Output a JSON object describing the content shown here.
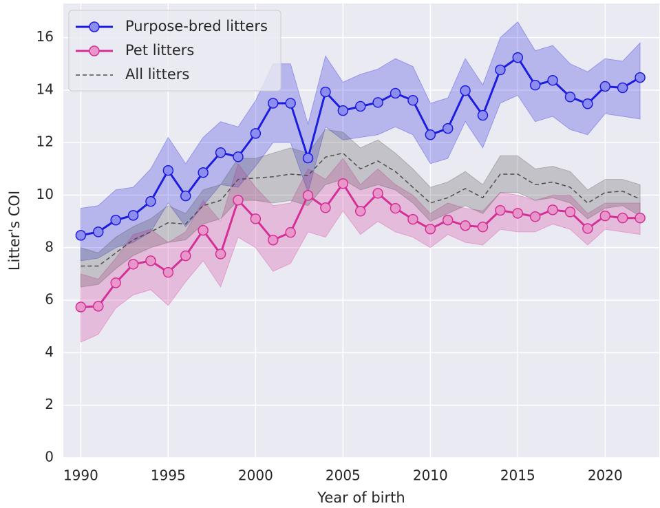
{
  "chart_data": {
    "type": "line",
    "xlabel": "Year of birth",
    "ylabel": "Litter's COI",
    "x": [
      1990,
      1991,
      1992,
      1993,
      1994,
      1995,
      1996,
      1997,
      1998,
      1999,
      2000,
      2001,
      2002,
      2003,
      2004,
      2005,
      2006,
      2007,
      2008,
      2009,
      2010,
      2011,
      2012,
      2013,
      2014,
      2015,
      2016,
      2017,
      2018,
      2019,
      2020,
      2021,
      2022
    ],
    "xlim": [
      1989,
      2023.1
    ],
    "xticks": [
      1990,
      1995,
      2000,
      2005,
      2010,
      2015,
      2020
    ],
    "ylim": [
      0,
      17.3
    ],
    "yticks": [
      0,
      2,
      4,
      6,
      8,
      10,
      12,
      14,
      16
    ],
    "grid": true,
    "legend": "upper left",
    "series": [
      {
        "name": "Purpose-bred litters",
        "color": "#1c1ce0",
        "linestyle": "-",
        "marker": "o",
        "values": [
          8.47,
          8.6,
          9.05,
          9.23,
          9.76,
          10.94,
          9.97,
          10.86,
          11.62,
          11.46,
          12.35,
          13.5,
          13.5,
          11.41,
          13.93,
          13.22,
          13.38,
          13.53,
          13.88,
          13.61,
          12.3,
          12.54,
          13.98,
          13.04,
          14.77,
          15.24,
          14.19,
          14.37,
          13.74,
          13.48,
          14.14,
          14.09,
          14.48
        ],
        "upper": [
          9.5,
          9.6,
          10.2,
          10.3,
          11.0,
          12.2,
          11.2,
          12.2,
          12.8,
          12.6,
          13.6,
          15.0,
          15.0,
          12.7,
          15.3,
          14.3,
          14.6,
          14.8,
          15.2,
          14.9,
          13.5,
          13.7,
          15.2,
          14.2,
          16.0,
          16.6,
          15.5,
          15.7,
          15.0,
          14.7,
          15.2,
          15.1,
          15.8
        ],
        "lower": [
          7.5,
          7.6,
          8.0,
          8.2,
          8.6,
          9.7,
          8.8,
          9.6,
          10.4,
          10.3,
          11.1,
          12.0,
          12.0,
          10.1,
          12.6,
          12.1,
          12.2,
          12.3,
          12.6,
          12.3,
          11.2,
          11.4,
          12.8,
          11.8,
          13.5,
          13.8,
          12.8,
          13.0,
          12.5,
          12.3,
          13.1,
          13.0,
          12.9
        ]
      },
      {
        "name": "Pet litters",
        "color": "#d42f96",
        "linestyle": "-",
        "marker": "o",
        "values": [
          5.74,
          5.77,
          6.66,
          7.37,
          7.5,
          7.06,
          7.69,
          8.66,
          7.76,
          9.81,
          9.1,
          8.29,
          8.58,
          9.99,
          9.52,
          10.44,
          9.39,
          10.07,
          9.5,
          9.08,
          8.71,
          9.05,
          8.84,
          8.79,
          9.42,
          9.31,
          9.18,
          9.44,
          9.36,
          8.73,
          9.21,
          9.13,
          9.13
        ],
        "upper": [
          7.0,
          6.8,
          7.6,
          8.5,
          8.7,
          8.2,
          8.6,
          9.8,
          9.0,
          11.2,
          10.3,
          9.6,
          9.7,
          11.0,
          10.6,
          11.4,
          10.4,
          11.0,
          10.4,
          10.0,
          9.3,
          9.7,
          9.5,
          9.4,
          10.1,
          10.0,
          9.8,
          10.0,
          10.0,
          9.3,
          9.7,
          9.7,
          9.7
        ],
        "lower": [
          4.4,
          4.7,
          5.7,
          6.2,
          6.4,
          5.8,
          6.7,
          7.5,
          6.5,
          8.4,
          8.0,
          7.1,
          7.4,
          8.6,
          8.4,
          9.4,
          8.5,
          9.0,
          8.6,
          8.4,
          8.0,
          8.5,
          8.2,
          8.1,
          8.7,
          8.6,
          8.6,
          8.9,
          8.7,
          8.1,
          8.7,
          8.6,
          8.5
        ]
      },
      {
        "name": "All litters",
        "color": "#4d4d4d",
        "linestyle": "--",
        "marker": null,
        "values": [
          7.3,
          7.3,
          7.8,
          8.3,
          8.6,
          8.95,
          8.9,
          9.6,
          9.8,
          10.6,
          10.65,
          10.7,
          10.8,
          10.75,
          11.45,
          11.6,
          11.0,
          11.3,
          10.9,
          10.3,
          9.7,
          9.9,
          10.25,
          9.9,
          10.8,
          10.8,
          10.4,
          10.5,
          10.3,
          9.7,
          10.1,
          10.15,
          9.85
        ],
        "upper": [
          8.0,
          7.8,
          8.4,
          8.8,
          9.1,
          9.6,
          9.3,
          10.2,
          10.4,
          11.4,
          11.4,
          11.6,
          11.8,
          11.6,
          12.5,
          12.4,
          11.8,
          12.1,
          11.6,
          11.0,
          10.3,
          10.5,
          10.9,
          10.4,
          11.5,
          11.5,
          11.0,
          11.1,
          10.9,
          10.2,
          10.6,
          10.6,
          10.4
        ],
        "lower": [
          6.5,
          6.6,
          7.2,
          7.7,
          8.0,
          8.2,
          8.3,
          8.9,
          9.1,
          9.8,
          9.8,
          9.7,
          9.8,
          9.6,
          10.4,
          10.6,
          10.2,
          10.4,
          10.2,
          9.7,
          9.0,
          9.3,
          9.6,
          9.3,
          10.1,
          10.1,
          9.8,
          9.9,
          9.7,
          9.1,
          9.5,
          9.6,
          9.2
        ]
      }
    ]
  }
}
